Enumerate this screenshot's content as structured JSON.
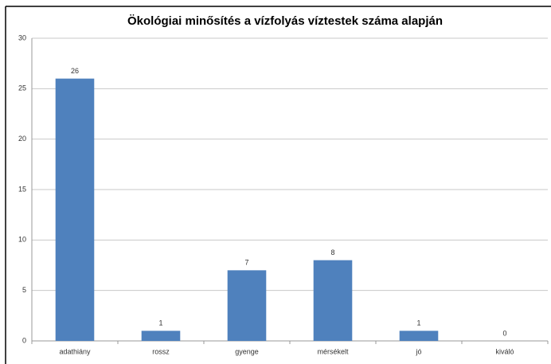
{
  "chart_data": {
    "type": "bar",
    "title": "Ökológiai minősítés a vízfolyás víztestek száma alapján",
    "categories": [
      "adathiány",
      "rossz",
      "gyenge",
      "mérsékelt",
      "jó",
      "kiváló"
    ],
    "values": [
      26,
      1,
      7,
      8,
      1,
      0
    ],
    "color": "#4f81bd",
    "ylim": [
      0,
      30
    ],
    "yticks": [
      0,
      5,
      10,
      15,
      20,
      25,
      30
    ],
    "grid": true
  }
}
